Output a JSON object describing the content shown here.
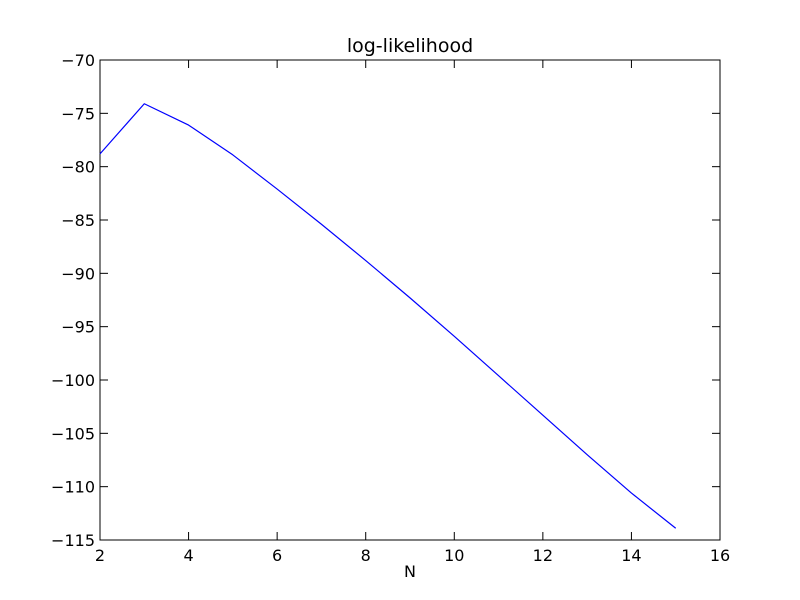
{
  "chart_data": {
    "type": "line",
    "title": "log-likelihood",
    "xlabel": "N",
    "ylabel": "",
    "xlim": [
      2,
      16
    ],
    "ylim": [
      -115,
      -70
    ],
    "x_ticks": [
      2,
      4,
      6,
      8,
      10,
      12,
      14,
      16
    ],
    "y_ticks": [
      -70,
      -75,
      -80,
      -85,
      -90,
      -95,
      -100,
      -105,
      -110,
      -115
    ],
    "x_tick_labels": [
      "2",
      "4",
      "6",
      "8",
      "10",
      "12",
      "14",
      "16"
    ],
    "y_tick_labels": [
      "−70",
      "−75",
      "−80",
      "−85",
      "−90",
      "−95",
      "−100",
      "−105",
      "−110",
      "−115"
    ],
    "grid": false,
    "legend": "none",
    "series": [
      {
        "color": "#0000ff",
        "x": [
          2,
          3,
          4,
          5,
          6,
          7,
          8,
          9,
          10,
          11,
          12,
          13,
          14,
          15
        ],
        "y": [
          -78.8,
          -74.1,
          -76.1,
          -78.9,
          -82.1,
          -85.4,
          -88.8,
          -92.3,
          -95.9,
          -99.6,
          -103.3,
          -107.0,
          -110.6,
          -113.9
        ]
      }
    ]
  }
}
